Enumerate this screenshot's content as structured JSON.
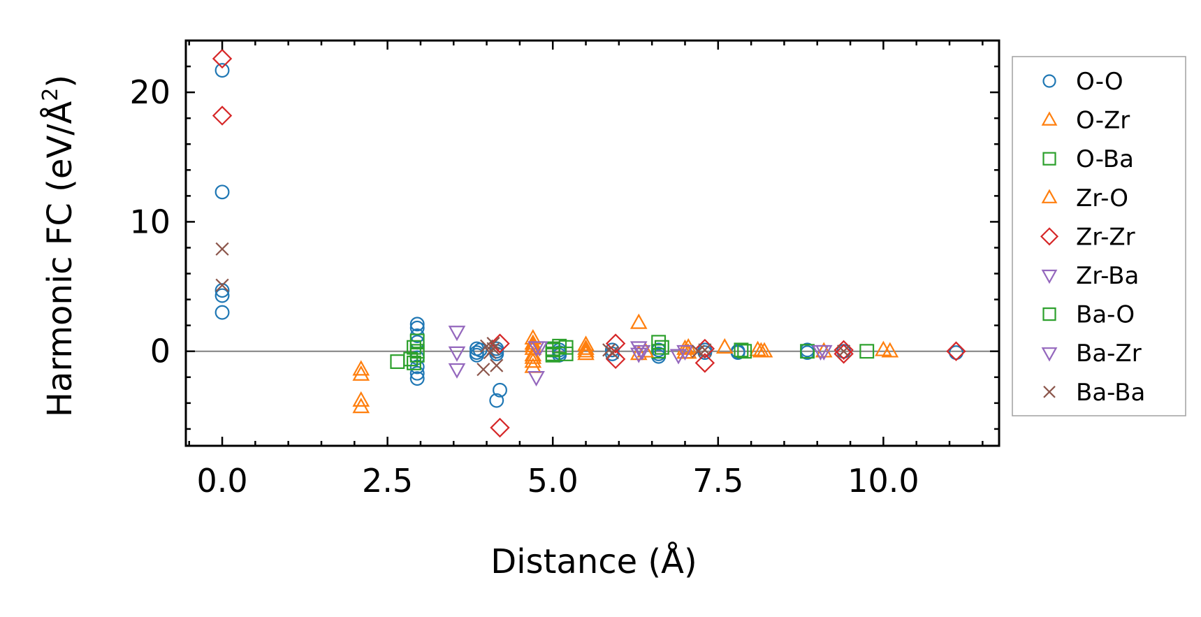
{
  "chart_data": {
    "type": "scatter",
    "xlabel": "Distance (Å)",
    "ylabel_main": "Harmonic FC (eV/Å",
    "ylabel_sup": "2",
    "ylabel_close": ")",
    "xlim": [
      -0.55,
      11.75
    ],
    "ylim": [
      -7.3,
      24.0
    ],
    "x_ticks": [
      0.0,
      2.5,
      5.0,
      7.5,
      10.0
    ],
    "x_tick_labels": [
      "0.0",
      "2.5",
      "5.0",
      "7.5",
      "10.0"
    ],
    "y_ticks": [
      0,
      10,
      20
    ],
    "y_tick_labels": [
      "0",
      "10",
      "20"
    ],
    "zero_line": true,
    "grid": false,
    "legend_placement": "outside-right",
    "series": [
      {
        "name": "O-O",
        "marker": "circle",
        "color": "#1f77b4",
        "points": [
          [
            0,
            21.7
          ],
          [
            0,
            12.3
          ],
          [
            0,
            4.7
          ],
          [
            0,
            4.3
          ],
          [
            0,
            3.0
          ],
          [
            2.95,
            2.1
          ],
          [
            2.95,
            1.8
          ],
          [
            2.95,
            1.2
          ],
          [
            2.95,
            0.7
          ],
          [
            2.95,
            -0.5
          ],
          [
            2.95,
            -1.2
          ],
          [
            2.95,
            -1.7
          ],
          [
            2.95,
            -2.1
          ],
          [
            3.85,
            0.2
          ],
          [
            3.85,
            -0.1
          ],
          [
            3.85,
            -0.3
          ],
          [
            3.9,
            0.1
          ],
          [
            4.15,
            0.2
          ],
          [
            4.15,
            0.0
          ],
          [
            4.15,
            -0.2
          ],
          [
            4.2,
            -3.0
          ],
          [
            4.15,
            -3.8
          ],
          [
            5.1,
            0.1
          ],
          [
            5.1,
            -0.1
          ],
          [
            5.1,
            -0.3
          ],
          [
            5.9,
            0.1
          ],
          [
            5.9,
            -0.2
          ],
          [
            6.6,
            0.1
          ],
          [
            6.6,
            -0.2
          ],
          [
            6.6,
            -0.4
          ],
          [
            7.3,
            0.1
          ],
          [
            7.3,
            -0.1
          ],
          [
            7.8,
            0.0
          ],
          [
            7.8,
            -0.1
          ],
          [
            8.85,
            0.1
          ],
          [
            8.85,
            -0.1
          ],
          [
            9.4,
            0.0
          ],
          [
            11.1,
            -0.1
          ]
        ]
      },
      {
        "name": "O-Zr",
        "marker": "triangle-up",
        "color": "#ff7f0e",
        "points": [
          [
            2.1,
            -1.4
          ],
          [
            2.1,
            -1.8
          ],
          [
            2.1,
            -3.8
          ],
          [
            2.1,
            -4.3
          ],
          [
            4.7,
            1.0
          ],
          [
            4.7,
            0.6
          ],
          [
            4.7,
            0.2
          ],
          [
            4.7,
            -0.3
          ],
          [
            4.7,
            -0.8
          ],
          [
            4.7,
            -1.2
          ],
          [
            5.5,
            0.5
          ],
          [
            5.5,
            0.2
          ],
          [
            5.5,
            -0.2
          ],
          [
            6.3,
            2.2
          ],
          [
            6.3,
            -0.2
          ],
          [
            7.05,
            0.3
          ],
          [
            7.05,
            -0.1
          ],
          [
            7.6,
            0.3
          ],
          [
            8.1,
            0.1
          ],
          [
            8.2,
            0.0
          ],
          [
            10.0,
            0.1
          ],
          [
            10.1,
            0.0
          ]
        ]
      },
      {
        "name": "O-Ba",
        "marker": "square",
        "color": "#2ca02c",
        "points": [
          [
            2.65,
            -0.8
          ],
          [
            2.85,
            -0.6
          ],
          [
            2.9,
            0.3
          ],
          [
            2.9,
            -0.9
          ],
          [
            2.95,
            0.8
          ],
          [
            2.95,
            0.0
          ],
          [
            2.95,
            -0.3
          ],
          [
            5.0,
            0.1
          ],
          [
            5.0,
            -0.2
          ],
          [
            5.1,
            0.4
          ],
          [
            5.2,
            0.3
          ],
          [
            5.2,
            -0.2
          ],
          [
            6.6,
            0.7
          ],
          [
            6.6,
            0.0
          ],
          [
            7.85,
            0.1
          ],
          [
            8.85,
            0.0
          ],
          [
            9.75,
            0.0
          ]
        ]
      },
      {
        "name": "Zr-O",
        "marker": "triangle-up",
        "color": "#ff7f0e",
        "points": [
          [
            4.7,
            0.4
          ],
          [
            4.7,
            -0.5
          ],
          [
            5.5,
            0.0
          ],
          [
            6.4,
            0.0
          ],
          [
            7.0,
            0.2
          ],
          [
            7.0,
            -0.1
          ],
          [
            8.15,
            0.0
          ],
          [
            9.1,
            0.0
          ]
        ]
      },
      {
        "name": "Zr-Zr",
        "marker": "diamond",
        "color": "#d62728",
        "points": [
          [
            0,
            22.6
          ],
          [
            0,
            18.2
          ],
          [
            4.2,
            0.6
          ],
          [
            4.2,
            -5.9
          ],
          [
            5.95,
            0.6
          ],
          [
            5.95,
            -0.6
          ],
          [
            7.3,
            0.2
          ],
          [
            7.3,
            -0.9
          ],
          [
            9.4,
            0.1
          ],
          [
            9.4,
            -0.2
          ],
          [
            11.1,
            0.0
          ]
        ]
      },
      {
        "name": "Zr-Ba",
        "marker": "triangle-down",
        "color": "#9467bd",
        "points": [
          [
            3.55,
            1.5
          ],
          [
            3.55,
            -0.1
          ],
          [
            3.55,
            -1.4
          ],
          [
            4.75,
            0.3
          ],
          [
            4.75,
            -2.0
          ],
          [
            6.3,
            0.3
          ],
          [
            6.3,
            -0.2
          ],
          [
            6.9,
            -0.3
          ],
          [
            9.1,
            0.0
          ]
        ]
      },
      {
        "name": "Ba-O",
        "marker": "square",
        "color": "#2ca02c",
        "points": [
          [
            5.0,
            0.2
          ],
          [
            5.0,
            -0.3
          ],
          [
            6.65,
            0.3
          ],
          [
            7.9,
            0.0
          ]
        ]
      },
      {
        "name": "Ba-Zr",
        "marker": "triangle-down",
        "color": "#9467bd",
        "points": [
          [
            4.8,
            0.3
          ],
          [
            6.35,
            0.0
          ],
          [
            7.0,
            0.0
          ],
          [
            9.05,
            0.0
          ]
        ]
      },
      {
        "name": "Ba-Ba",
        "marker": "x",
        "color": "#8c564b",
        "points": [
          [
            0,
            7.9
          ],
          [
            0,
            5.1
          ],
          [
            3.95,
            -1.4
          ],
          [
            4.0,
            0.4
          ],
          [
            4.05,
            -0.1
          ],
          [
            4.1,
            0.6
          ],
          [
            4.1,
            0.2
          ],
          [
            4.15,
            -1.1
          ],
          [
            5.85,
            0.1
          ],
          [
            5.9,
            -0.1
          ],
          [
            7.2,
            0.0
          ],
          [
            7.3,
            0.1
          ],
          [
            9.4,
            0.0
          ]
        ]
      }
    ]
  }
}
